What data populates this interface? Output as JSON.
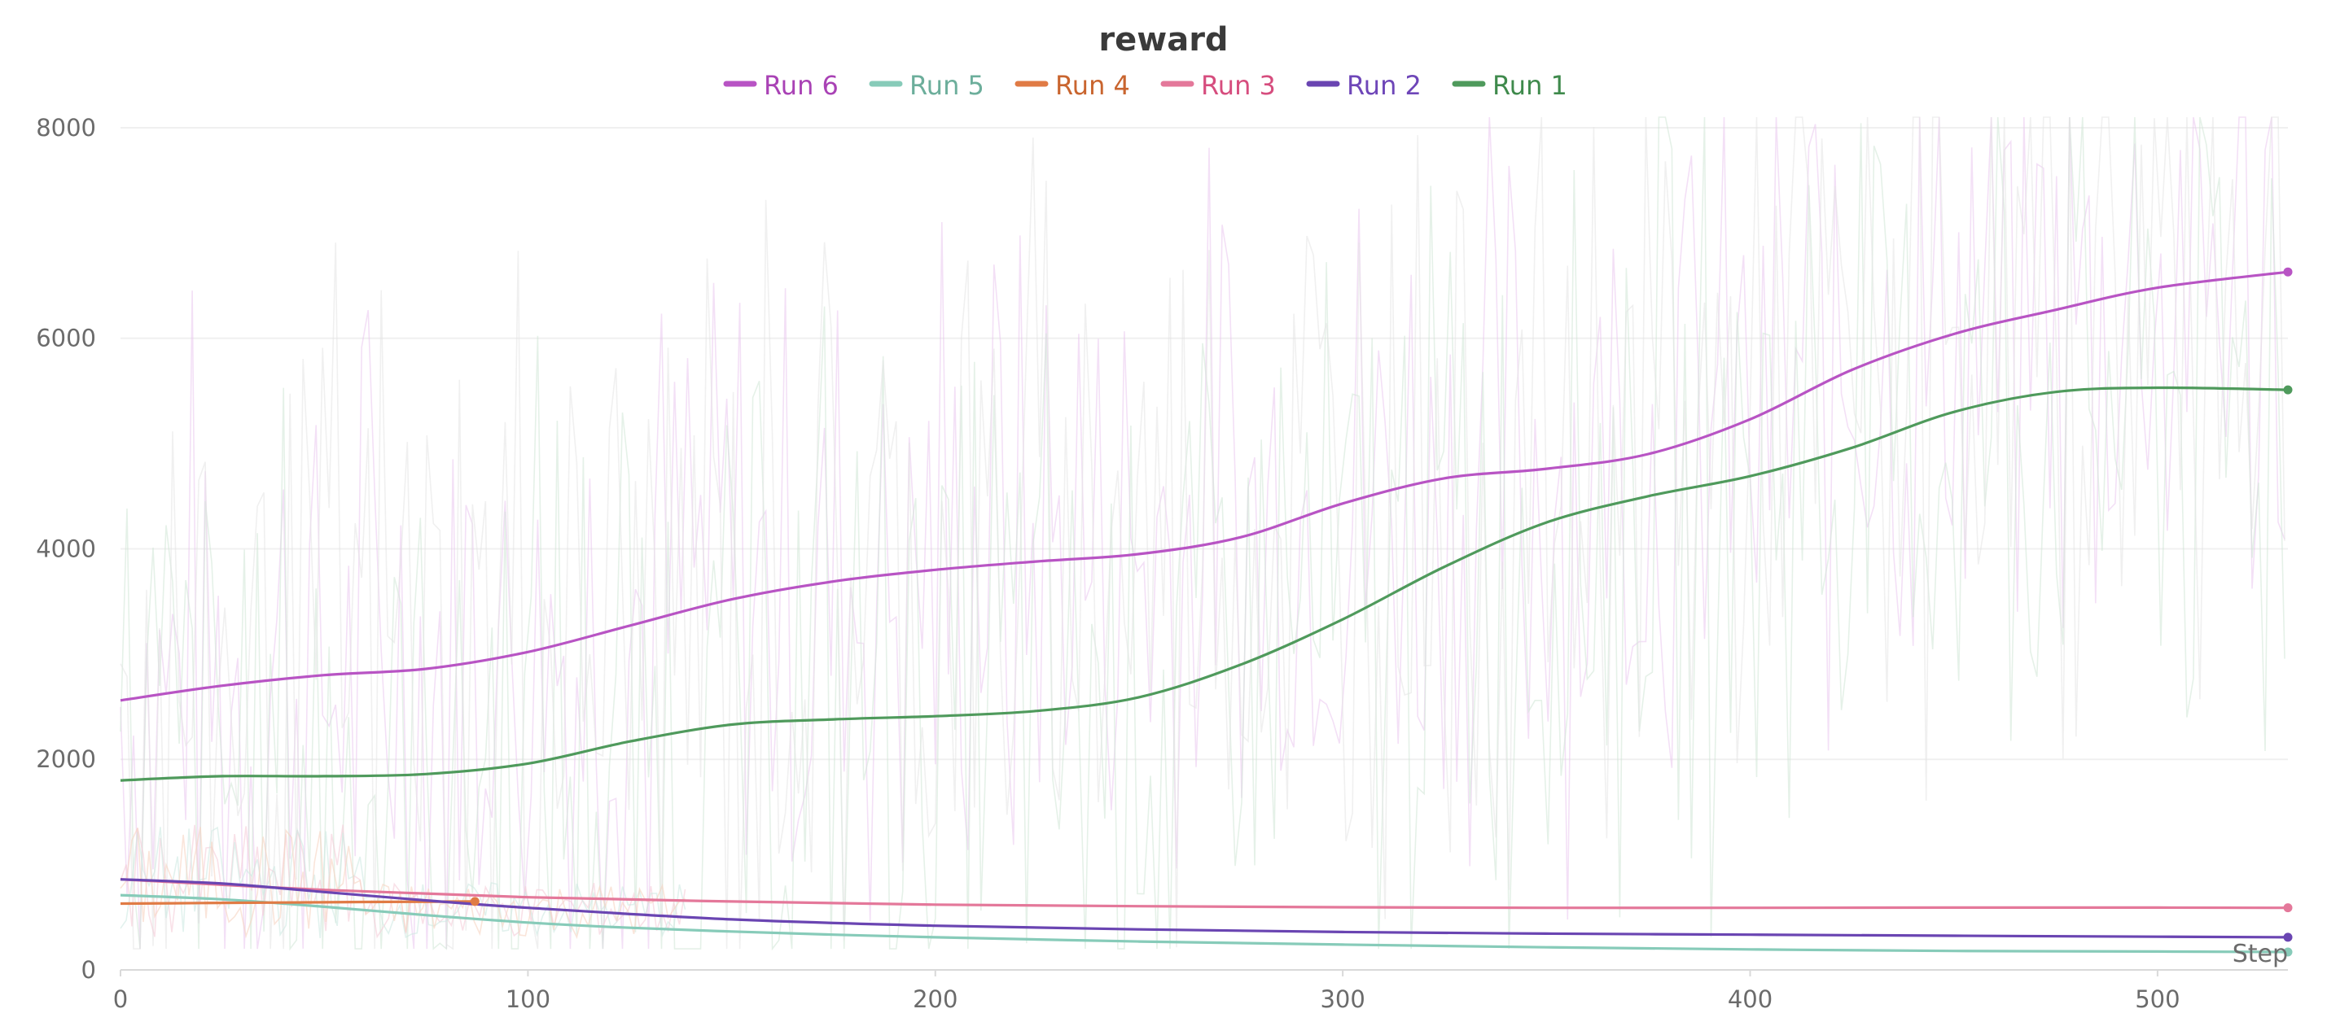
{
  "chart_data": {
    "type": "line",
    "title": "reward",
    "xlabel": "Step",
    "ylabel": "",
    "xlim": [
      0,
      532
    ],
    "ylim": [
      0,
      8100
    ],
    "xticks": [
      0,
      100,
      200,
      300,
      400,
      500
    ],
    "yticks": [
      0,
      2000,
      4000,
      6000,
      8000
    ],
    "grid": true,
    "legend_position": "top-center",
    "legend_order": [
      "Run 6",
      "Run 5",
      "Run 4",
      "Run 3",
      "Run 2",
      "Run 1"
    ],
    "series": [
      {
        "name": "Run 6",
        "color": "#b854c4",
        "label_color": "#a942b5",
        "x": [
          0,
          25,
          50,
          75,
          100,
          125,
          150,
          175,
          200,
          225,
          250,
          275,
          300,
          325,
          350,
          375,
          400,
          425,
          450,
          475,
          500,
          532
        ],
        "values": [
          2560,
          2700,
          2800,
          2860,
          3020,
          3270,
          3520,
          3690,
          3800,
          3880,
          3950,
          4110,
          4430,
          4670,
          4760,
          4900,
          5230,
          5700,
          6040,
          6270,
          6480,
          6630
        ]
      },
      {
        "name": "Run 5",
        "color": "#87cbb9",
        "label_color": "#6cae9b",
        "x": [
          0,
          25,
          50,
          75,
          100,
          125,
          150,
          175,
          200,
          250,
          300,
          350,
          400,
          450,
          500,
          532
        ],
        "values": [
          710,
          670,
          600,
          520,
          450,
          400,
          365,
          335,
          310,
          270,
          240,
          215,
          195,
          180,
          175,
          170
        ]
      },
      {
        "name": "Run 4",
        "color": "#e07b45",
        "label_color": "#c9652f",
        "x": [
          0,
          20,
          40,
          60,
          87
        ],
        "values": [
          630,
          635,
          640,
          645,
          650
        ]
      },
      {
        "name": "Run 3",
        "color": "#e4789a",
        "label_color": "#d64d7e",
        "x": [
          0,
          50,
          100,
          150,
          200,
          250,
          300,
          350,
          400,
          450,
          500,
          532
        ],
        "values": [
          860,
          760,
          690,
          650,
          620,
          605,
          595,
          590,
          590,
          592,
          592,
          590
        ]
      },
      {
        "name": "Run 2",
        "color": "#6a45b2",
        "label_color": "#6e46b8",
        "x": [
          0,
          25,
          50,
          75,
          100,
          150,
          200,
          250,
          300,
          350,
          400,
          450,
          500,
          532
        ],
        "values": [
          860,
          820,
          740,
          660,
          590,
          480,
          420,
          385,
          360,
          345,
          335,
          325,
          315,
          310
        ]
      },
      {
        "name": "Run 1",
        "color": "#4f9a5c",
        "label_color": "#3f8a4c",
        "x": [
          0,
          25,
          50,
          75,
          100,
          125,
          150,
          175,
          200,
          225,
          250,
          275,
          300,
          325,
          350,
          375,
          400,
          425,
          450,
          475,
          500,
          532
        ],
        "values": [
          1800,
          1840,
          1840,
          1860,
          1960,
          2170,
          2330,
          2380,
          2410,
          2460,
          2590,
          2900,
          3330,
          3830,
          4250,
          4500,
          4690,
          4960,
          5300,
          5490,
          5530,
          5510
        ]
      }
    ]
  }
}
